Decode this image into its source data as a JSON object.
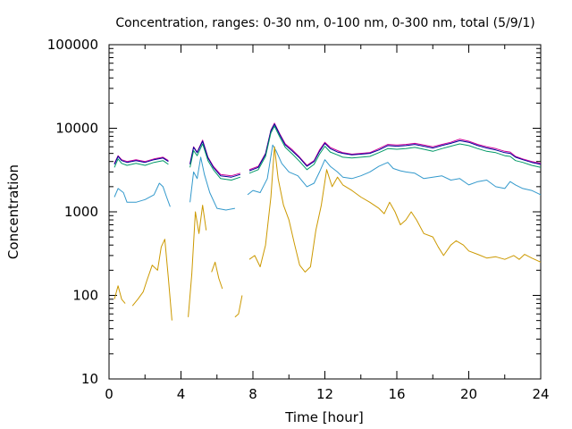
{
  "chart_data": {
    "type": "line",
    "title": "Concentration, ranges: 0-30 nm, 0-100 nm, 0-300 nm, total (5/9/1)",
    "xlabel": "Time [hour]",
    "ylabel": "Concentration",
    "xlim": [
      0,
      24
    ],
    "ylim": [
      10,
      100000
    ],
    "yscale": "log",
    "grid": false,
    "legend": "none",
    "x_ticks": [
      0,
      4,
      8,
      12,
      16,
      20,
      24
    ],
    "x_tick_labels": [
      "0",
      "4",
      "8",
      "12",
      "16",
      "20",
      "24"
    ],
    "y_ticks": [
      10,
      100,
      1000,
      10000,
      100000
    ],
    "y_tick_labels": [
      "10",
      "100",
      "1000",
      "10000",
      "100000"
    ],
    "series": [
      {
        "color": "#cc0099",
        "points": [
          [
            0.3,
            3800
          ],
          [
            0.5,
            4700
          ],
          [
            0.7,
            4200
          ],
          [
            1.0,
            4000
          ],
          [
            1.5,
            4200
          ],
          [
            2.0,
            4000
          ],
          [
            2.5,
            4300
          ],
          [
            3.0,
            4500
          ],
          [
            3.3,
            4100
          ],
          [
            null,
            null
          ],
          [
            4.5,
            3800
          ],
          [
            4.7,
            6000
          ],
          [
            4.9,
            5200
          ],
          [
            5.2,
            7200
          ],
          [
            5.5,
            4500
          ],
          [
            5.8,
            3500
          ],
          [
            6.2,
            2800
          ],
          [
            6.8,
            2700
          ],
          [
            7.3,
            2900
          ],
          [
            null,
            null
          ],
          [
            7.8,
            3200
          ],
          [
            8.3,
            3500
          ],
          [
            8.7,
            5000
          ],
          [
            9.0,
            9500
          ],
          [
            9.2,
            11500
          ],
          [
            9.5,
            8500
          ],
          [
            9.8,
            6500
          ],
          [
            10.2,
            5500
          ],
          [
            10.6,
            4500
          ],
          [
            11.0,
            3600
          ],
          [
            11.4,
            4100
          ],
          [
            11.7,
            5500
          ],
          [
            12.0,
            6800
          ],
          [
            12.3,
            5900
          ],
          [
            12.7,
            5400
          ],
          [
            13.0,
            5100
          ],
          [
            13.5,
            4900
          ],
          [
            14.0,
            5000
          ],
          [
            14.5,
            5100
          ],
          [
            15.0,
            5700
          ],
          [
            15.5,
            6400
          ],
          [
            16.0,
            6300
          ],
          [
            16.5,
            6400
          ],
          [
            17.0,
            6600
          ],
          [
            17.5,
            6300
          ],
          [
            18.0,
            6000
          ],
          [
            18.5,
            6400
          ],
          [
            19.0,
            6800
          ],
          [
            19.5,
            7400
          ],
          [
            20.0,
            7000
          ],
          [
            20.5,
            6400
          ],
          [
            21.0,
            6000
          ],
          [
            21.5,
            5700
          ],
          [
            22.0,
            5300
          ],
          [
            22.3,
            5200
          ],
          [
            22.6,
            4600
          ],
          [
            23.0,
            4300
          ],
          [
            23.5,
            4000
          ],
          [
            24.0,
            3800
          ]
        ]
      },
      {
        "color": "#000099",
        "points": [
          [
            0.3,
            3700
          ],
          [
            0.5,
            4600
          ],
          [
            0.7,
            4100
          ],
          [
            1.0,
            3900
          ],
          [
            1.5,
            4100
          ],
          [
            2.0,
            3900
          ],
          [
            2.5,
            4200
          ],
          [
            3.0,
            4400
          ],
          [
            3.3,
            4000
          ],
          [
            null,
            null
          ],
          [
            4.5,
            3700
          ],
          [
            4.7,
            5900
          ],
          [
            4.9,
            5100
          ],
          [
            5.2,
            7000
          ],
          [
            5.5,
            4400
          ],
          [
            5.8,
            3400
          ],
          [
            6.2,
            2700
          ],
          [
            6.8,
            2600
          ],
          [
            7.3,
            2800
          ],
          [
            null,
            null
          ],
          [
            7.8,
            3100
          ],
          [
            8.3,
            3400
          ],
          [
            8.7,
            4900
          ],
          [
            9.0,
            9300
          ],
          [
            9.2,
            11200
          ],
          [
            9.5,
            8300
          ],
          [
            9.8,
            6300
          ],
          [
            10.2,
            5300
          ],
          [
            10.6,
            4400
          ],
          [
            11.0,
            3500
          ],
          [
            11.4,
            4000
          ],
          [
            11.7,
            5300
          ],
          [
            12.0,
            6600
          ],
          [
            12.3,
            5700
          ],
          [
            12.7,
            5200
          ],
          [
            13.0,
            5000
          ],
          [
            13.5,
            4800
          ],
          [
            14.0,
            4900
          ],
          [
            14.5,
            5000
          ],
          [
            15.0,
            5500
          ],
          [
            15.5,
            6200
          ],
          [
            16.0,
            6100
          ],
          [
            16.5,
            6200
          ],
          [
            17.0,
            6400
          ],
          [
            17.5,
            6100
          ],
          [
            18.0,
            5800
          ],
          [
            18.5,
            6200
          ],
          [
            19.0,
            6600
          ],
          [
            19.5,
            7100
          ],
          [
            20.0,
            6800
          ],
          [
            20.5,
            6200
          ],
          [
            21.0,
            5800
          ],
          [
            21.5,
            5500
          ],
          [
            22.0,
            5100
          ],
          [
            22.3,
            5000
          ],
          [
            22.6,
            4500
          ],
          [
            23.0,
            4200
          ],
          [
            23.5,
            3900
          ],
          [
            24.0,
            3700
          ]
        ]
      },
      {
        "color": "#009966",
        "points": [
          [
            0.3,
            3400
          ],
          [
            0.5,
            4300
          ],
          [
            0.7,
            3800
          ],
          [
            1.0,
            3600
          ],
          [
            1.5,
            3800
          ],
          [
            2.0,
            3600
          ],
          [
            2.5,
            3900
          ],
          [
            3.0,
            4100
          ],
          [
            3.3,
            3700
          ],
          [
            null,
            null
          ],
          [
            4.5,
            3400
          ],
          [
            4.7,
            5400
          ],
          [
            4.9,
            4700
          ],
          [
            5.2,
            6500
          ],
          [
            5.5,
            4100
          ],
          [
            5.8,
            3200
          ],
          [
            6.2,
            2500
          ],
          [
            6.8,
            2400
          ],
          [
            7.3,
            2600
          ],
          [
            null,
            null
          ],
          [
            7.8,
            2900
          ],
          [
            8.3,
            3200
          ],
          [
            8.7,
            4600
          ],
          [
            9.0,
            8800
          ],
          [
            9.2,
            10600
          ],
          [
            9.5,
            7800
          ],
          [
            9.8,
            5900
          ],
          [
            10.2,
            4900
          ],
          [
            10.6,
            4000
          ],
          [
            11.0,
            3200
          ],
          [
            11.4,
            3700
          ],
          [
            11.7,
            4900
          ],
          [
            12.0,
            6100
          ],
          [
            12.3,
            5200
          ],
          [
            12.7,
            4800
          ],
          [
            13.0,
            4500
          ],
          [
            13.5,
            4400
          ],
          [
            14.0,
            4500
          ],
          [
            14.5,
            4600
          ],
          [
            15.0,
            5100
          ],
          [
            15.5,
            5700
          ],
          [
            16.0,
            5600
          ],
          [
            16.5,
            5700
          ],
          [
            17.0,
            5900
          ],
          [
            17.5,
            5600
          ],
          [
            18.0,
            5300
          ],
          [
            18.5,
            5700
          ],
          [
            19.0,
            6100
          ],
          [
            19.5,
            6500
          ],
          [
            20.0,
            6200
          ],
          [
            20.5,
            5700
          ],
          [
            21.0,
            5300
          ],
          [
            21.5,
            5100
          ],
          [
            22.0,
            4700
          ],
          [
            22.3,
            4600
          ],
          [
            22.6,
            4100
          ],
          [
            23.0,
            3900
          ],
          [
            23.5,
            3600
          ],
          [
            24.0,
            3400
          ]
        ]
      },
      {
        "color": "#3399cc",
        "points": [
          [
            0.3,
            1500
          ],
          [
            0.5,
            1900
          ],
          [
            0.8,
            1700
          ],
          [
            1.0,
            1300
          ],
          [
            1.5,
            1300
          ],
          [
            2.0,
            1400
          ],
          [
            2.5,
            1600
          ],
          [
            2.8,
            2200
          ],
          [
            3.0,
            2000
          ],
          [
            3.2,
            1500
          ],
          [
            3.4,
            1150
          ],
          [
            null,
            null
          ],
          [
            4.5,
            1300
          ],
          [
            4.7,
            3000
          ],
          [
            4.9,
            2500
          ],
          [
            5.1,
            4500
          ],
          [
            5.3,
            2800
          ],
          [
            5.6,
            1700
          ],
          [
            6.0,
            1100
          ],
          [
            6.5,
            1050
          ],
          [
            7.0,
            1100
          ],
          [
            null,
            null
          ],
          [
            7.7,
            1600
          ],
          [
            8.0,
            1800
          ],
          [
            8.4,
            1700
          ],
          [
            8.8,
            2500
          ],
          [
            9.1,
            6300
          ],
          [
            9.3,
            5300
          ],
          [
            9.6,
            3800
          ],
          [
            10.0,
            3000
          ],
          [
            10.5,
            2700
          ],
          [
            11.0,
            2000
          ],
          [
            11.4,
            2200
          ],
          [
            11.7,
            3000
          ],
          [
            12.0,
            4200
          ],
          [
            12.3,
            3500
          ],
          [
            12.7,
            3000
          ],
          [
            13.0,
            2600
          ],
          [
            13.5,
            2500
          ],
          [
            14.0,
            2700
          ],
          [
            14.5,
            3000
          ],
          [
            15.0,
            3500
          ],
          [
            15.5,
            3900
          ],
          [
            15.8,
            3300
          ],
          [
            16.2,
            3100
          ],
          [
            16.5,
            3000
          ],
          [
            17.0,
            2900
          ],
          [
            17.5,
            2500
          ],
          [
            18.0,
            2600
          ],
          [
            18.5,
            2700
          ],
          [
            19.0,
            2400
          ],
          [
            19.5,
            2500
          ],
          [
            20.0,
            2100
          ],
          [
            20.5,
            2300
          ],
          [
            21.0,
            2400
          ],
          [
            21.5,
            2000
          ],
          [
            22.0,
            1900
          ],
          [
            22.3,
            2300
          ],
          [
            22.6,
            2100
          ],
          [
            23.0,
            1900
          ],
          [
            23.5,
            1800
          ],
          [
            24.0,
            1600
          ]
        ]
      },
      {
        "color": "#cc9900",
        "points": [
          [
            0.3,
            90
          ],
          [
            0.5,
            130
          ],
          [
            0.7,
            90
          ],
          [
            0.9,
            80
          ],
          [
            null,
            null
          ],
          [
            1.3,
            75
          ],
          [
            1.6,
            90
          ],
          [
            1.9,
            110
          ],
          [
            2.1,
            150
          ],
          [
            2.4,
            230
          ],
          [
            2.7,
            200
          ],
          [
            2.9,
            380
          ],
          [
            3.1,
            470
          ],
          [
            3.3,
            160
          ],
          [
            3.5,
            50
          ],
          [
            null,
            null
          ],
          [
            4.4,
            55
          ],
          [
            4.6,
            180
          ],
          [
            4.8,
            1000
          ],
          [
            5.0,
            550
          ],
          [
            5.2,
            1200
          ],
          [
            5.4,
            600
          ],
          [
            null,
            null
          ],
          [
            5.7,
            190
          ],
          [
            5.9,
            250
          ],
          [
            6.1,
            160
          ],
          [
            6.3,
            120
          ],
          [
            null,
            null
          ],
          [
            7.0,
            55
          ],
          [
            7.2,
            60
          ],
          [
            7.4,
            100
          ],
          [
            null,
            null
          ],
          [
            7.8,
            270
          ],
          [
            8.1,
            300
          ],
          [
            8.4,
            220
          ],
          [
            8.7,
            400
          ],
          [
            9.0,
            1500
          ],
          [
            9.2,
            6000
          ],
          [
            9.4,
            2500
          ],
          [
            9.7,
            1200
          ],
          [
            10.0,
            800
          ],
          [
            10.3,
            420
          ],
          [
            10.6,
            230
          ],
          [
            10.9,
            190
          ],
          [
            11.2,
            220
          ],
          [
            11.5,
            600
          ],
          [
            11.8,
            1200
          ],
          [
            12.1,
            3200
          ],
          [
            12.4,
            2000
          ],
          [
            12.7,
            2600
          ],
          [
            13.0,
            2100
          ],
          [
            13.5,
            1800
          ],
          [
            14.0,
            1500
          ],
          [
            14.5,
            1300
          ],
          [
            15.0,
            1100
          ],
          [
            15.3,
            950
          ],
          [
            15.6,
            1300
          ],
          [
            15.9,
            1000
          ],
          [
            16.2,
            700
          ],
          [
            16.5,
            800
          ],
          [
            16.8,
            1000
          ],
          [
            17.1,
            800
          ],
          [
            17.5,
            550
          ],
          [
            18.0,
            500
          ],
          [
            18.3,
            380
          ],
          [
            18.6,
            300
          ],
          [
            19.0,
            400
          ],
          [
            19.3,
            450
          ],
          [
            19.7,
            400
          ],
          [
            20.0,
            340
          ],
          [
            20.5,
            310
          ],
          [
            21.0,
            280
          ],
          [
            21.5,
            290
          ],
          [
            22.0,
            270
          ],
          [
            22.5,
            300
          ],
          [
            22.8,
            270
          ],
          [
            23.1,
            310
          ],
          [
            23.5,
            280
          ],
          [
            24.0,
            250
          ]
        ]
      }
    ]
  }
}
